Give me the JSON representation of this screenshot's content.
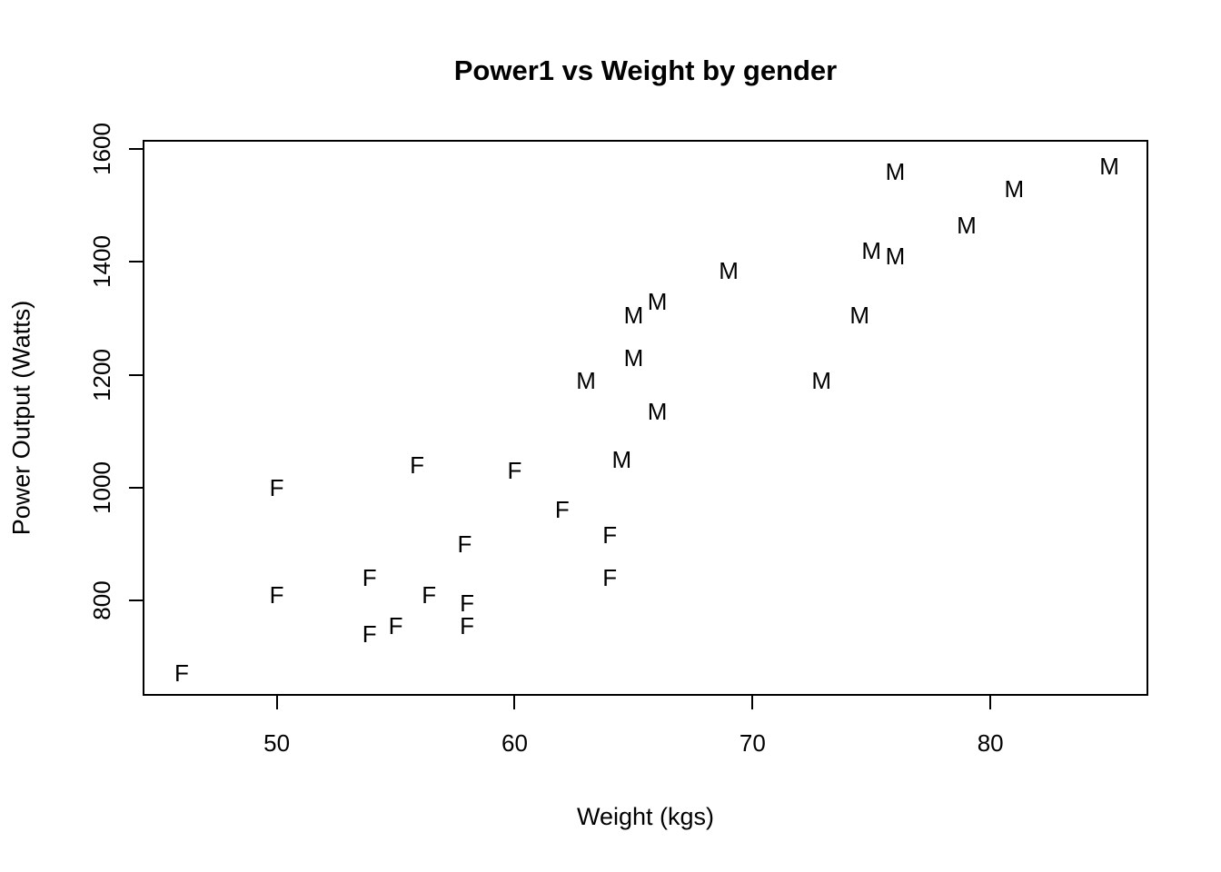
{
  "figure": {
    "background_color": "#ffffff",
    "foreground_color": "#000000"
  },
  "chart_data": {
    "type": "scatter",
    "title": "Power1 vs Weight by gender",
    "xlabel": "Weight (kgs)",
    "ylabel": "Power Output (Watts)",
    "x_ticks": [
      50,
      60,
      70,
      80
    ],
    "y_ticks": [
      800,
      1000,
      1200,
      1400,
      1600
    ],
    "xlim": [
      44.4,
      86.6
    ],
    "ylim": [
      632,
      1615
    ],
    "grid": false,
    "legend_position": "none",
    "marker_style": "letter glyphs used as point symbols",
    "series": [
      {
        "name": "Female",
        "marker": "F",
        "color": "#000000",
        "points": [
          [
            46.0,
            670
          ],
          [
            50.0,
            1000
          ],
          [
            50.0,
            810
          ],
          [
            53.9,
            840
          ],
          [
            53.9,
            740
          ],
          [
            55.0,
            755
          ],
          [
            55.9,
            1040
          ],
          [
            56.4,
            810
          ],
          [
            57.9,
            900
          ],
          [
            58.0,
            795
          ],
          [
            58.0,
            755
          ],
          [
            60.0,
            1030
          ],
          [
            62.0,
            960
          ],
          [
            64.0,
            915
          ],
          [
            64.0,
            840
          ]
        ]
      },
      {
        "name": "Male",
        "marker": "M",
        "color": "#000000",
        "points": [
          [
            63.0,
            1190
          ],
          [
            64.5,
            1050
          ],
          [
            65.0,
            1305
          ],
          [
            65.0,
            1230
          ],
          [
            66.0,
            1330
          ],
          [
            66.0,
            1135
          ],
          [
            69.0,
            1385
          ],
          [
            72.9,
            1190
          ],
          [
            74.5,
            1305
          ],
          [
            75.0,
            1420
          ],
          [
            76.0,
            1410
          ],
          [
            76.0,
            1560
          ],
          [
            79.0,
            1465
          ],
          [
            81.0,
            1530
          ],
          [
            85.0,
            1570
          ]
        ]
      }
    ]
  }
}
